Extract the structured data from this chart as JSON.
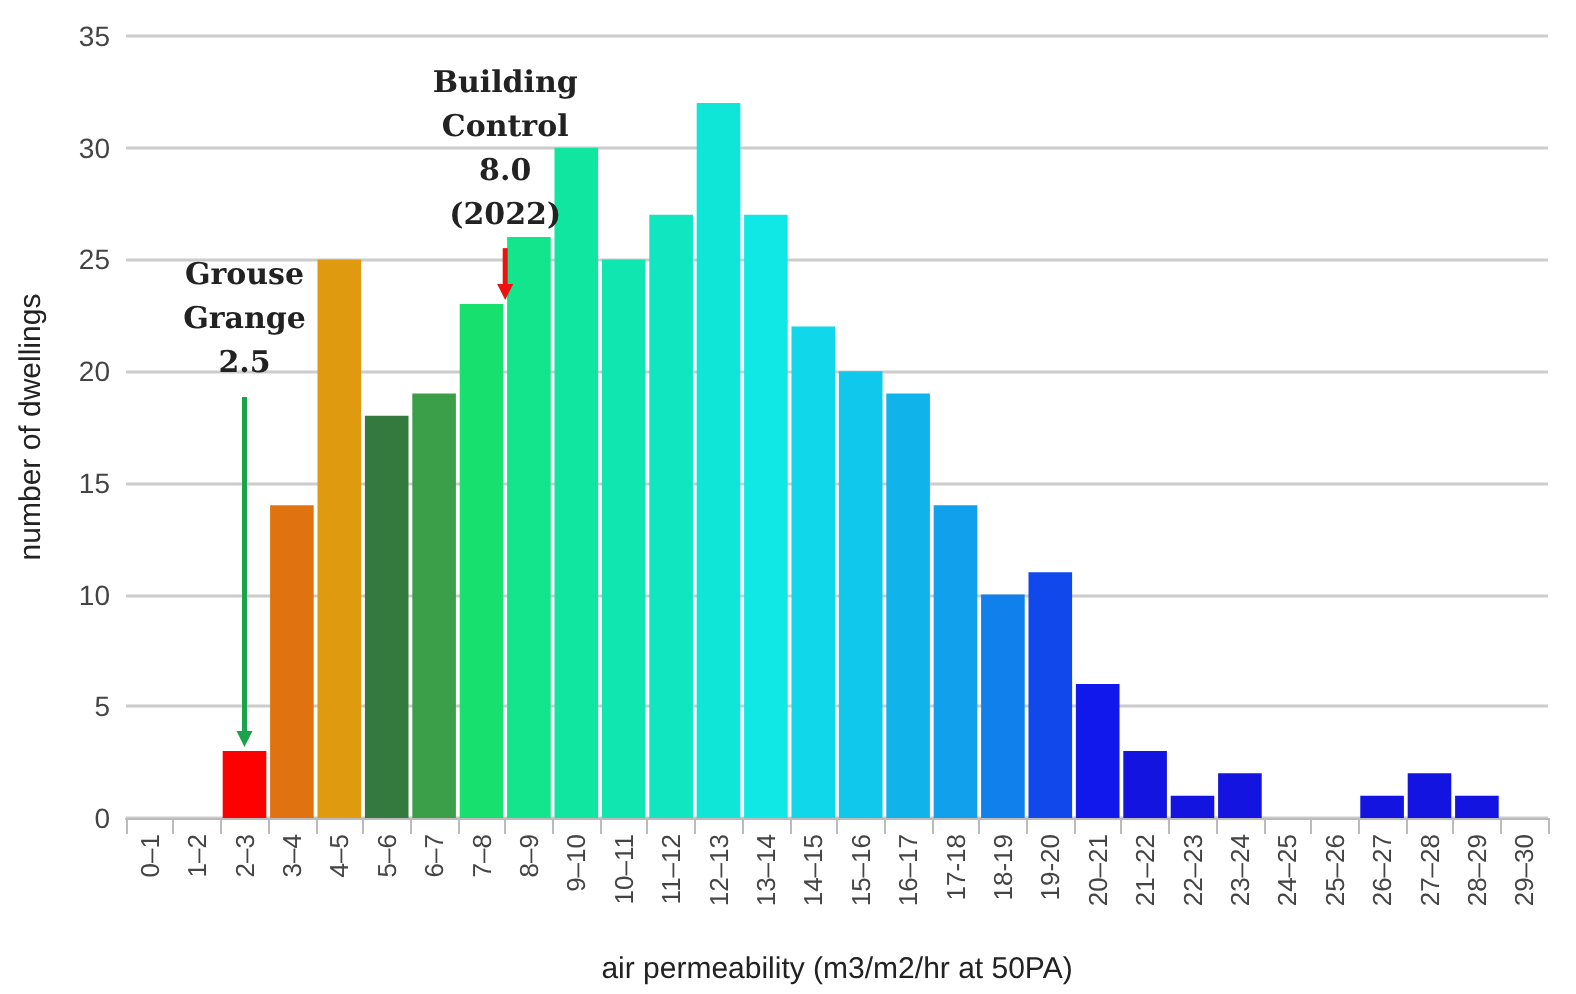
{
  "chart_data": {
    "type": "bar",
    "xlabel": "air permeability (m3/m2/hr at 50PA)",
    "ylabel": "number of dwellings",
    "categories": [
      "0–1",
      "1–2",
      "2–3",
      "3–4",
      "4–5",
      "5–6",
      "6–7",
      "7–8",
      "8–9",
      "9–10",
      "10–11",
      "11–12",
      "12–13",
      "13–14",
      "14–15",
      "15–16",
      "16–17",
      "17-18",
      "18-19",
      "19-20",
      "20–21",
      "21–22",
      "22–23",
      "23–24",
      "24–25",
      "25–26",
      "26–27",
      "27–28",
      "28–29",
      "29–30"
    ],
    "values": [
      0,
      0,
      3,
      14,
      25,
      18,
      19,
      23,
      26,
      30,
      25,
      27,
      32,
      27,
      22,
      20,
      19,
      14,
      10,
      11,
      6,
      3,
      1,
      2,
      0,
      0,
      1,
      2,
      1,
      0
    ],
    "colors": [
      "#ff0000",
      "#ff0000",
      "#ff0000",
      "#e0730f",
      "#df9a10",
      "#347a3e",
      "#3a9f48",
      "#17e06f",
      "#12e58c",
      "#10e6a0",
      "#10e6b0",
      "#10e6c0",
      "#10e6d8",
      "#10e8e6",
      "#10d8ea",
      "#10c8ec",
      "#10b4ea",
      "#10a0ec",
      "#1080ec",
      "#1048ec",
      "#1018ec",
      "#1414e0",
      "#1414e0",
      "#1414e0",
      "#1414e0",
      "#1414e0",
      "#1414e0",
      "#1414e0",
      "#1414e0",
      "#1414e0"
    ],
    "ylim": [
      0,
      35
    ],
    "yticks": [
      0,
      5,
      10,
      15,
      20,
      25,
      30,
      35
    ],
    "grid": "y",
    "annotations": [
      {
        "text": "Grouse\nGrange\n2.5",
        "x": "2–3",
        "y": 3
      },
      {
        "text": "Building\nControl\n8.0\n(2022)",
        "x": "7–8",
        "y": 23
      }
    ]
  }
}
